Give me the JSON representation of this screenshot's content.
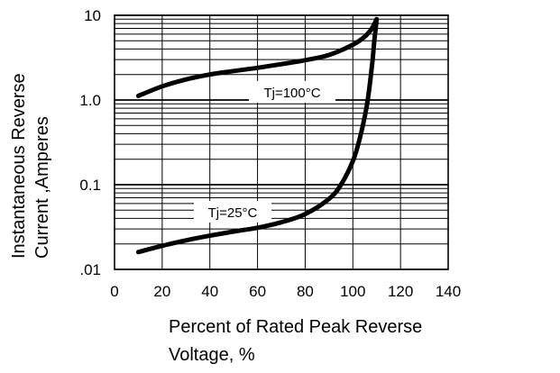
{
  "chart_data": {
    "type": "line",
    "xlabel": [
      "Percent of Rated Peak Reverse",
      "Voltage, %"
    ],
    "ylabel": [
      "Instantaneous Reverse",
      "Current ,Amperes"
    ],
    "x_ticks": [
      "0",
      "20",
      "40",
      "60",
      "80",
      "100",
      "120",
      "140"
    ],
    "y_ticks": [
      {
        "value": 10,
        "label": "10"
      },
      {
        "value": 1,
        "label": "1.0"
      },
      {
        "value": 0.1,
        "label": "0.1"
      },
      {
        "value": 0.01,
        "label": ".01"
      }
    ],
    "xlim": [
      0,
      140
    ],
    "ylim": [
      0.01,
      10
    ],
    "y_scale": "log",
    "grid": true,
    "series": [
      {
        "name": "Tj=100°C",
        "x": [
          10,
          20,
          30,
          40,
          50,
          60,
          70,
          80,
          90,
          100,
          105,
          108,
          110
        ],
        "y": [
          1.12,
          1.45,
          1.75,
          2.0,
          2.2,
          2.4,
          2.65,
          2.95,
          3.4,
          4.5,
          5.6,
          7.0,
          9.0
        ]
      },
      {
        "name": "Tj=25°C",
        "x": [
          10,
          20,
          30,
          40,
          50,
          60,
          70,
          80,
          90,
          95,
          100,
          103,
          106,
          108,
          109,
          110
        ],
        "y": [
          0.016,
          0.019,
          0.022,
          0.025,
          0.028,
          0.031,
          0.036,
          0.045,
          0.068,
          0.1,
          0.19,
          0.36,
          0.9,
          2.5,
          5.0,
          9.0
        ]
      }
    ],
    "annotations": [
      {
        "text": "Tj=100°C",
        "series": "Tj=100°C"
      },
      {
        "text": "Tj=25°C",
        "series": "Tj=25°C"
      }
    ]
  }
}
